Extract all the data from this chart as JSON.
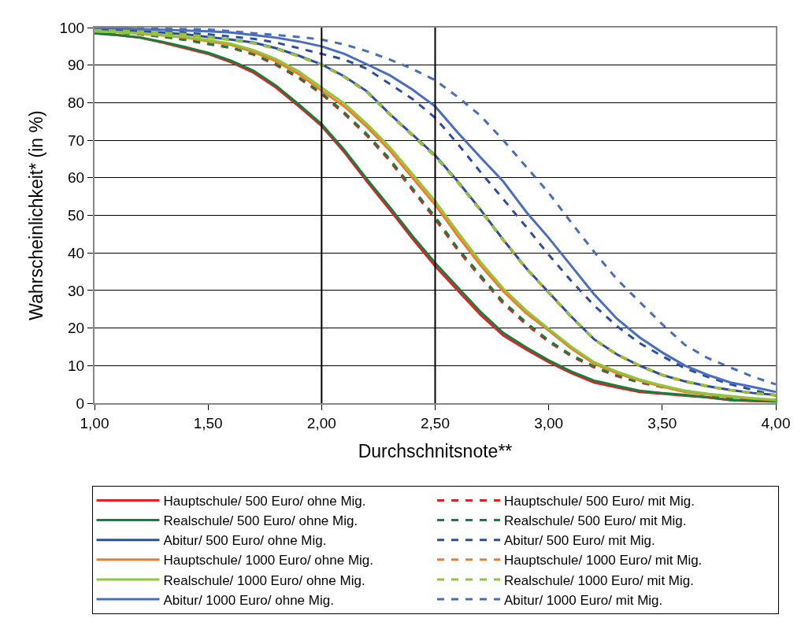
{
  "chart_data": {
    "type": "line",
    "xlabel": "Durchschnitsnote**",
    "ylabel": "Wahrscheinlichkeit* (in %)",
    "x": [
      1.0,
      1.1,
      1.2,
      1.3,
      1.4,
      1.5,
      1.6,
      1.7,
      1.8,
      1.9,
      2.0,
      2.1,
      2.2,
      2.3,
      2.4,
      2.5,
      2.6,
      2.7,
      2.8,
      2.9,
      3.0,
      3.1,
      3.2,
      3.3,
      3.4,
      3.5,
      3.6,
      3.7,
      3.8,
      3.9,
      4.0
    ],
    "xlim": [
      1,
      4
    ],
    "xticks": [
      {
        "value": 1,
        "label": "1,00"
      },
      {
        "value": 1.5,
        "label": "1,50"
      },
      {
        "value": 2,
        "label": "2,00"
      },
      {
        "value": 2.5,
        "label": "2,50"
      },
      {
        "value": 3,
        "label": "3,00"
      },
      {
        "value": 3.5,
        "label": "3,50"
      },
      {
        "value": 4,
        "label": "4,00"
      }
    ],
    "ylim": [
      0,
      100
    ],
    "yticks": [
      0,
      10,
      20,
      30,
      40,
      50,
      60,
      70,
      80,
      90,
      100
    ],
    "grid": "y",
    "legend": "bottom",
    "marker": "none",
    "ref_lines": [
      {
        "axis": "x",
        "value": 2,
        "color": "#000000"
      },
      {
        "axis": "x",
        "value": 2.5,
        "color": "#000000"
      }
    ],
    "series": [
      {
        "name": "Hauptschule/ 500 Euro/ ohne Mig.",
        "color": "#ed1c24",
        "line_style": "solid",
        "values": [
          98.5,
          98,
          97.3,
          96,
          94.5,
          93,
          90.8,
          88,
          84,
          79,
          73.8,
          66.8,
          59,
          51.5,
          43.8,
          36.5,
          30,
          23.5,
          18,
          14.3,
          10.9,
          8,
          5.5,
          4.2,
          3,
          2.5,
          2,
          1.5,
          0.8,
          0.6,
          0.4
        ]
      },
      {
        "name": "Hauptschule/ 500 Euro/ mit Mig.",
        "color": "#ed1c24",
        "line_style": "dashed",
        "values": [
          99,
          98.7,
          98.2,
          97.5,
          96.7,
          95.6,
          94.6,
          92.8,
          90,
          86.5,
          82.3,
          77,
          71.2,
          64.5,
          56.7,
          49,
          40.7,
          33.5,
          26.5,
          21,
          16.3,
          12.5,
          9.5,
          7.2,
          5.5,
          4.3,
          3.2,
          2.2,
          1.3,
          1,
          0.8
        ]
      },
      {
        "name": "Realschule/ 500 Euro/ ohne Mig.",
        "color": "#16803a",
        "line_style": "solid",
        "values": [
          98.5,
          98,
          97.4,
          96.2,
          94.8,
          93.3,
          91.2,
          88.5,
          84.5,
          79.5,
          74.3,
          67.4,
          59.6,
          52.2,
          44.5,
          37.3,
          30.8,
          24.3,
          18.7,
          14.9,
          11.4,
          8.4,
          6,
          4.6,
          3.3,
          2.7,
          2.2,
          1.6,
          0.9,
          0.7,
          0.5
        ]
      },
      {
        "name": "Realschule/ 500 Euro/ mit Mig.",
        "color": "#16803a",
        "line_style": "dashed",
        "values": [
          99,
          98.7,
          98.3,
          97.6,
          96.8,
          95.7,
          94.7,
          93,
          90.3,
          86.8,
          82.6,
          77.4,
          71.6,
          65,
          57.2,
          49.6,
          41.2,
          34,
          27,
          21.5,
          16.7,
          12.8,
          9.8,
          7.4,
          5.6,
          4.4,
          3.3,
          2.3,
          1.4,
          1.1,
          0.9
        ]
      },
      {
        "name": "Abitur/ 500 Euro/ ohne Mig.",
        "color": "#2b4ea2",
        "line_style": "solid",
        "values": [
          99.5,
          99.3,
          99,
          98.7,
          98.2,
          97.5,
          96.8,
          96,
          94.5,
          92.5,
          90.2,
          87,
          83,
          77,
          71.5,
          66,
          59,
          51.5,
          43.5,
          36,
          29.5,
          23,
          17,
          13,
          10,
          7.5,
          5.8,
          4.5,
          3.5,
          2.7,
          2.2
        ]
      },
      {
        "name": "Abitur/ 500 Euro/ mit Mig.",
        "color": "#2b4ea2",
        "line_style": "dashed",
        "values": [
          99.8,
          99.6,
          99.4,
          99,
          98.6,
          98.2,
          97.6,
          97,
          96,
          94.5,
          93,
          91.5,
          89,
          85,
          81,
          76,
          69,
          61.5,
          54.3,
          47,
          39.5,
          32.5,
          26,
          20.5,
          16,
          12.5,
          9.3,
          7,
          5,
          3.5,
          2
        ]
      },
      {
        "name": "Hauptschule/ 1000 Euro/ ohne Mig.",
        "color": "#f47b20",
        "line_style": "solid",
        "values": [
          99,
          98.8,
          98.4,
          97.9,
          97.3,
          96.4,
          95.4,
          93.5,
          91,
          87.6,
          83.2,
          79,
          73.5,
          67.3,
          60,
          52.8,
          44.5,
          36.7,
          29.8,
          24,
          19.3,
          14.5,
          10.5,
          8,
          6,
          4.4,
          3,
          2.3,
          1.7,
          1.2,
          0.8
        ]
      },
      {
        "name": "Hauptschule/ 1000 Euro/ mit Mig.",
        "color": "#f47b20",
        "line_style": "dashed",
        "values": [
          99.5,
          99.3,
          99,
          98.6,
          98.1,
          97.4,
          96.7,
          95.8,
          94.3,
          92.3,
          90,
          86.8,
          82.7,
          76.8,
          71.2,
          65.6,
          58.7,
          51.2,
          43.3,
          35.8,
          29.3,
          22.8,
          16.9,
          12.9,
          9.9,
          7.4,
          5.7,
          4.4,
          3.4,
          2.6,
          2.1
        ]
      },
      {
        "name": "Realschule/ 1000 Euro/ ohne Mig.",
        "color": "#8dc63f",
        "line_style": "solid",
        "values": [
          99,
          98.8,
          98.5,
          98,
          97.5,
          96.7,
          95.7,
          94,
          91.6,
          88.3,
          84,
          79.8,
          74.3,
          68.2,
          61,
          53.8,
          45.5,
          37.6,
          30.5,
          24.7,
          19.8,
          15,
          10.9,
          8.4,
          6.3,
          4.7,
          3.3,
          2.5,
          1.9,
          1.3,
          0.9
        ]
      },
      {
        "name": "Realschule/ 1000 Euro/ mit Mig.",
        "color": "#8dc63f",
        "line_style": "dashed",
        "values": [
          99.5,
          99.3,
          99.1,
          98.7,
          98.2,
          97.5,
          96.8,
          95.9,
          94.4,
          92.4,
          90.1,
          86.9,
          82.8,
          77,
          71.4,
          65.8,
          58.9,
          51.4,
          43.5,
          36,
          29.5,
          23,
          17.1,
          13.1,
          10.1,
          7.6,
          5.9,
          4.6,
          3.5,
          2.7,
          2.2
        ]
      },
      {
        "name": "Abitur/ 1000 Euro/ ohne Mig.",
        "color": "#4a6ebe",
        "line_style": "solid",
        "values": [
          100,
          99.8,
          99.6,
          99.4,
          99.2,
          99,
          98.7,
          98,
          97.3,
          96.3,
          95,
          93,
          90.2,
          87.3,
          83.5,
          79,
          72,
          65.4,
          59,
          51,
          44,
          36.5,
          29,
          22.5,
          17.5,
          13.5,
          10,
          7.5,
          5.5,
          4.3,
          3
        ]
      },
      {
        "name": "Abitur/ 1000 Euro/ mit Mig.",
        "color": "#4a6ebe",
        "line_style": "dashed",
        "values": [
          100,
          99.9,
          99.8,
          99.7,
          99.6,
          99.5,
          99,
          98.5,
          98,
          97.5,
          96.8,
          95.5,
          93.7,
          91.5,
          89,
          86,
          81.5,
          76.5,
          70,
          63,
          56,
          48,
          40.3,
          33,
          27,
          21,
          15.5,
          12,
          9.5,
          7,
          5
        ]
      }
    ]
  }
}
